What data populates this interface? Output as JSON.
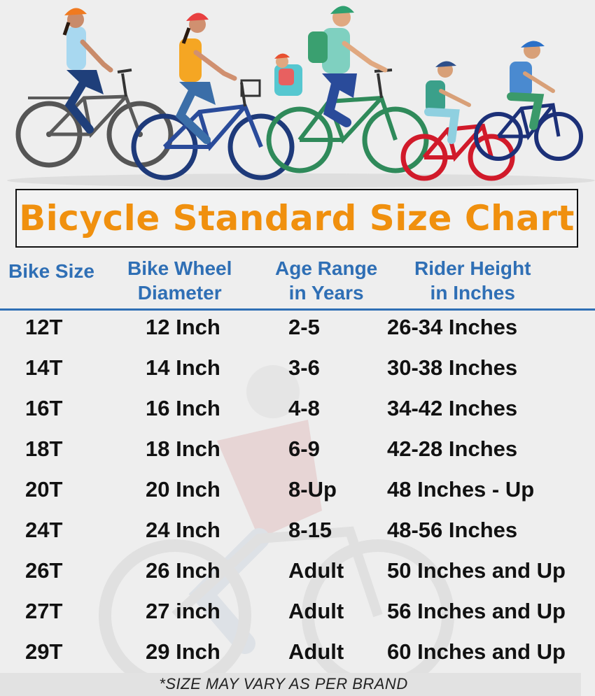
{
  "title": "Bicycle Standard Size Chart",
  "headers": {
    "bike_size": [
      "Bike Size"
    ],
    "wheel_diameter": [
      "Bike Wheel",
      "Diameter"
    ],
    "age_range": [
      "Age Range",
      "in Years"
    ],
    "rider_height": [
      "Rider Height",
      "in Inches"
    ]
  },
  "rows": [
    {
      "size": "12T",
      "wheel": "12 Inch",
      "age": "2-5",
      "height": "26-34 Inches"
    },
    {
      "size": "14T",
      "wheel": "14 Inch",
      "age": "3-6",
      "height": "30-38 Inches"
    },
    {
      "size": "16T",
      "wheel": "16 Inch",
      "age": "4-8",
      "height": "34-42 Inches"
    },
    {
      "size": "18T",
      "wheel": "18 Inch",
      "age": "6-9",
      "height": "42-28 Inches"
    },
    {
      "size": "20T",
      "wheel": "20 Inch",
      "age": "8-Up",
      "height": "48 Inches - Up"
    },
    {
      "size": "24T",
      "wheel": "24 Inch",
      "age": "8-15",
      "height": "48-56 Inches"
    },
    {
      "size": "26T",
      "wheel": "26 Inch",
      "age": "Adult",
      "height": "50 Inches and Up"
    },
    {
      "size": "27T",
      "wheel": "27 inch",
      "age": "Adult",
      "height": "56 Inches and Up"
    },
    {
      "size": "29T",
      "wheel": "29 Inch",
      "age": "Adult",
      "height": "60 Inches and Up"
    }
  ],
  "footnote": "*SIZE MAY VARY AS PER BRAND",
  "colors": {
    "title": "#f0900e",
    "header": "#2f6fb5",
    "text": "#111111",
    "background": "#eeeeee"
  }
}
